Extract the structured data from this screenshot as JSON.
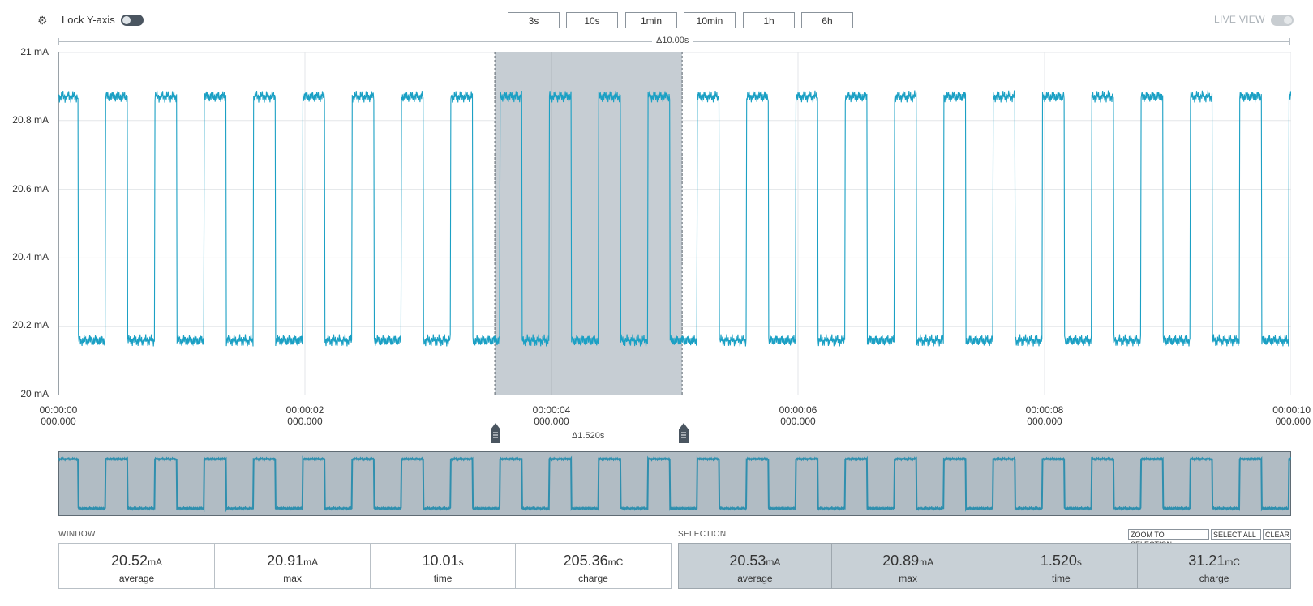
{
  "toolbar": {
    "settings_icon": "gear-icon",
    "lock_label": "Lock Y-axis",
    "lock_enabled": false,
    "ranges": [
      "3s",
      "10s",
      "1min",
      "10min",
      "1h",
      "6h"
    ],
    "live_label": "LIVE VIEW",
    "live_enabled": false
  },
  "window_delta": "Δ10.00s",
  "selection_delta": "Δ1.520s",
  "axis": {
    "y_ticks": [
      "21 mA",
      "20.8 mA",
      "20.6 mA",
      "20.4 mA",
      "20.2 mA",
      "20 mA"
    ],
    "x_ticks": [
      {
        "time": "00:00:00",
        "ms": "000.000"
      },
      {
        "time": "00:00:02",
        "ms": "000.000"
      },
      {
        "time": "00:00:04",
        "ms": "000.000"
      },
      {
        "time": "00:00:06",
        "ms": "000.000"
      },
      {
        "time": "00:00:08",
        "ms": "000.000"
      },
      {
        "time": "00:00:10",
        "ms": "000.000"
      }
    ]
  },
  "chart_data": {
    "type": "line",
    "xlabel": "",
    "ylabel": "",
    "xlim": [
      0,
      10
    ],
    "ylim": [
      20,
      21
    ],
    "grid": true,
    "series": [
      {
        "color": "#1ba0c4",
        "period_s": 0.4,
        "high_mA": 20.87,
        "low_mA": 20.16,
        "high_segments": [
          [
            0.0,
            0.16
          ],
          [
            0.38,
            0.56
          ],
          [
            0.78,
            0.96
          ],
          [
            1.18,
            1.36
          ],
          [
            1.58,
            1.76
          ],
          [
            1.98,
            2.16
          ],
          [
            2.38,
            2.56
          ],
          [
            2.78,
            2.96
          ],
          [
            3.18,
            3.36
          ],
          [
            3.58,
            3.76
          ],
          [
            3.98,
            4.16
          ],
          [
            4.38,
            4.56
          ],
          [
            4.78,
            4.96
          ],
          [
            5.18,
            5.36
          ],
          [
            5.58,
            5.76
          ],
          [
            5.98,
            6.16
          ],
          [
            6.38,
            6.56
          ],
          [
            6.78,
            6.96
          ],
          [
            7.18,
            7.36
          ],
          [
            7.58,
            7.76
          ],
          [
            7.98,
            8.16
          ],
          [
            8.38,
            8.56
          ],
          [
            8.78,
            8.96
          ],
          [
            9.18,
            9.36
          ],
          [
            9.58,
            9.76
          ],
          [
            9.98,
            10.0
          ]
        ]
      }
    ],
    "selection": {
      "start_s": 3.54,
      "end_s": 5.06
    }
  },
  "window_stats": {
    "title": "WINDOW",
    "items": [
      {
        "value": "20.52",
        "unit": "mA",
        "label": "average"
      },
      {
        "value": "20.91",
        "unit": "mA",
        "label": "max"
      },
      {
        "value": "10.01",
        "unit": "s",
        "label": "time"
      },
      {
        "value": "205.36",
        "unit": "mC",
        "label": "charge"
      }
    ]
  },
  "selection_stats": {
    "title": "SELECTION",
    "buttons": [
      "ZOOM TO SELECTION",
      "SELECT ALL",
      "CLEAR"
    ],
    "items": [
      {
        "value": "20.53",
        "unit": "mA",
        "label": "average"
      },
      {
        "value": "20.89",
        "unit": "mA",
        "label": "max"
      },
      {
        "value": "1.520",
        "unit": "s",
        "label": "time"
      },
      {
        "value": "31.21",
        "unit": "mC",
        "label": "charge"
      }
    ]
  }
}
